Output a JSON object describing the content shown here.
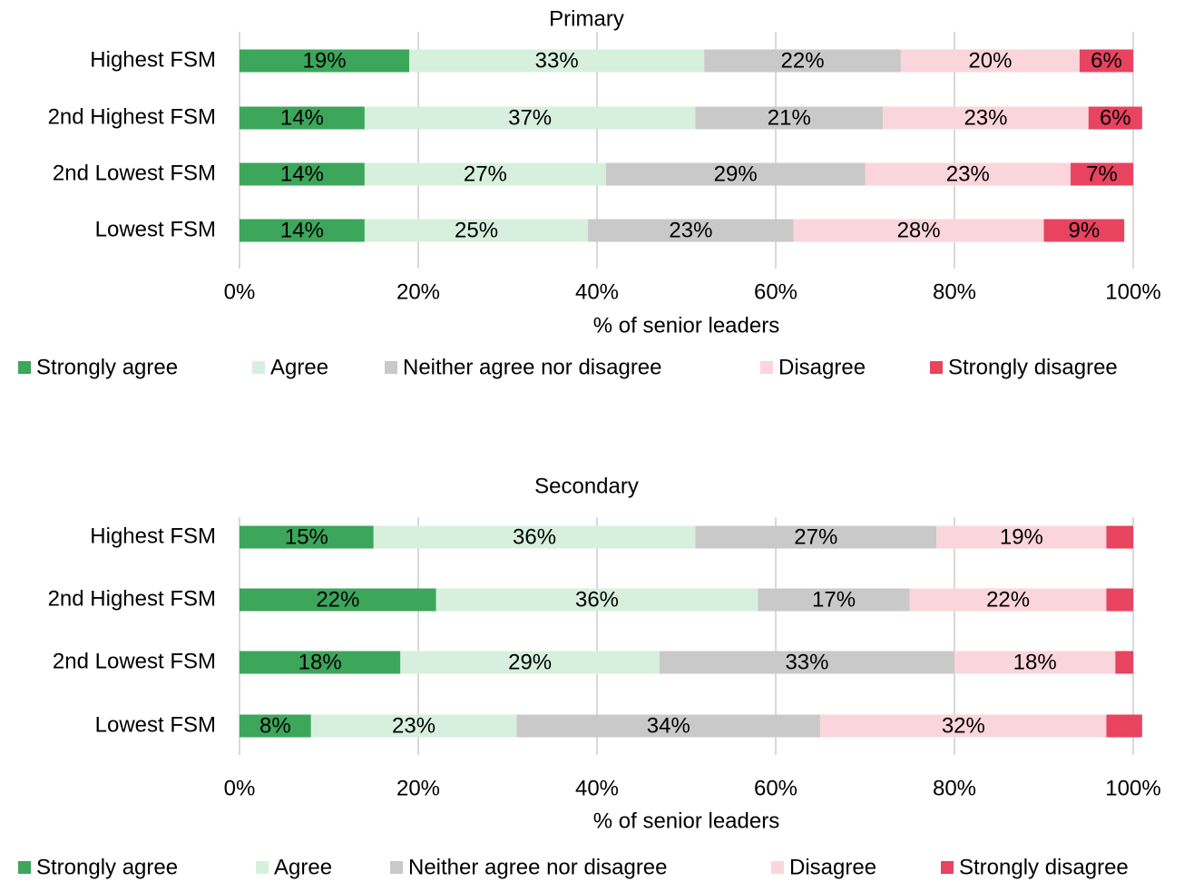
{
  "chart_data": [
    {
      "type": "stacked_bar_horizontal",
      "title": "Primary",
      "x_label": "% of senior leaders",
      "categories": [
        "Highest FSM",
        "2nd Highest FSM",
        "2nd Lowest FSM",
        "Lowest FSM"
      ],
      "xlim": [
        0,
        100
      ],
      "xticks": [
        {
          "value": 0,
          "label": "0%"
        },
        {
          "value": 20,
          "label": "20%"
        },
        {
          "value": 40,
          "label": "40%"
        },
        {
          "value": 60,
          "label": "60%"
        },
        {
          "value": 80,
          "label": "80%"
        },
        {
          "value": 100,
          "label": "100%"
        }
      ],
      "grid": true,
      "legend": "bottom",
      "series": [
        {
          "name": "Strongly agree",
          "color": "#3ca65a",
          "values": [
            19,
            14,
            14,
            14
          ],
          "value_labels": [
            "19%",
            "14%",
            "14%",
            "14%"
          ]
        },
        {
          "name": "Agree",
          "color": "#d7f0de",
          "values": [
            33,
            37,
            27,
            25
          ],
          "value_labels": [
            "33%",
            "37%",
            "27%",
            "25%"
          ]
        },
        {
          "name": "Neither agree nor disagree",
          "color": "#c9c9c9",
          "values": [
            22,
            21,
            29,
            23
          ],
          "value_labels": [
            "22%",
            "21%",
            "29%",
            "23%"
          ]
        },
        {
          "name": "Disagree",
          "color": "#fbd5dc",
          "values": [
            20,
            23,
            23,
            28
          ],
          "value_labels": [
            "20%",
            "23%",
            "23%",
            "28%"
          ]
        },
        {
          "name": "Strongly disagree",
          "color": "#e8435f",
          "values": [
            6,
            6,
            7,
            9
          ],
          "value_labels": [
            "6%",
            "6%",
            "7%",
            "9%"
          ]
        }
      ]
    },
    {
      "type": "stacked_bar_horizontal",
      "title": "Secondary",
      "x_label": "% of senior leaders",
      "categories": [
        "Highest FSM",
        "2nd Highest FSM",
        "2nd Lowest FSM",
        "Lowest FSM"
      ],
      "xlim": [
        0,
        100
      ],
      "xticks": [
        {
          "value": 0,
          "label": "0%"
        },
        {
          "value": 20,
          "label": "20%"
        },
        {
          "value": 40,
          "label": "40%"
        },
        {
          "value": 60,
          "label": "60%"
        },
        {
          "value": 80,
          "label": "80%"
        },
        {
          "value": 100,
          "label": "100%"
        }
      ],
      "grid": true,
      "legend": "bottom",
      "series": [
        {
          "name": "Strongly agree",
          "color": "#3ca65a",
          "values": [
            15,
            22,
            18,
            8
          ],
          "value_labels": [
            "15%",
            "22%",
            "18%",
            "8%"
          ]
        },
        {
          "name": "Agree",
          "color": "#d7f0de",
          "values": [
            36,
            36,
            29,
            23
          ],
          "value_labels": [
            "36%",
            "36%",
            "29%",
            "23%"
          ]
        },
        {
          "name": "Neither agree nor disagree",
          "color": "#c9c9c9",
          "values": [
            27,
            17,
            33,
            34
          ],
          "value_labels": [
            "27%",
            "17%",
            "33%",
            "34%"
          ]
        },
        {
          "name": "Disagree",
          "color": "#fbd5dc",
          "values": [
            19,
            22,
            18,
            32
          ],
          "value_labels": [
            "19%",
            "22%",
            "18%",
            "32%"
          ]
        },
        {
          "name": "Strongly disagree",
          "color": "#e8435f",
          "values": [
            3,
            3,
            2,
            4
          ],
          "value_labels": [
            null,
            null,
            null,
            null
          ]
        }
      ]
    }
  ]
}
